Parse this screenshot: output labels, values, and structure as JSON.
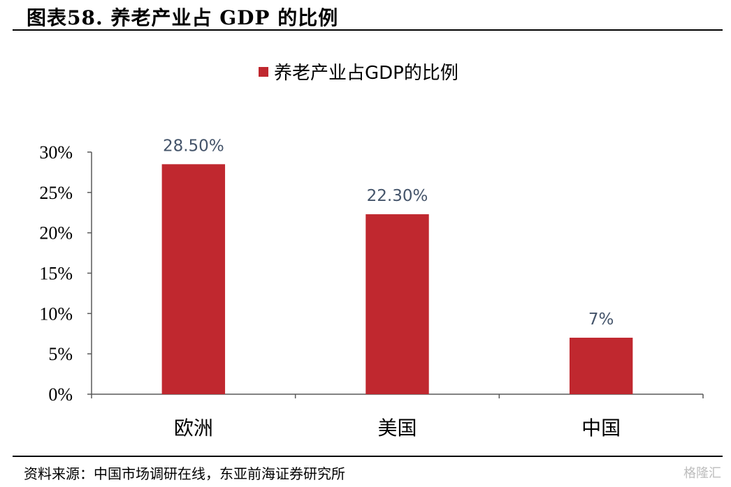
{
  "header": {
    "title": "图表58.  养老产业占 GDP 的比例"
  },
  "footer": {
    "source": "资料来源：中国市场调研在线，东亚前海证券研究所"
  },
  "watermark": {
    "text": "格隆汇"
  },
  "colors": {
    "bar": "#C0282F",
    "axis": "#595959",
    "label": "#44546A"
  },
  "chart_data": {
    "type": "bar",
    "title": "",
    "legend": "养老产业占GDP的比例",
    "legend_position": "top-center",
    "categories": [
      "欧洲",
      "美国",
      "中国"
    ],
    "series": [
      {
        "name": "养老产业占GDP的比例",
        "values": [
          28.5,
          22.3,
          7
        ]
      }
    ],
    "data_labels": [
      "28.50%",
      "22.30%",
      "7%"
    ],
    "yticks": [
      "0%",
      "5%",
      "10%",
      "15%",
      "20%",
      "25%",
      "30%"
    ],
    "ylim": [
      0,
      30
    ],
    "grid": false
  }
}
